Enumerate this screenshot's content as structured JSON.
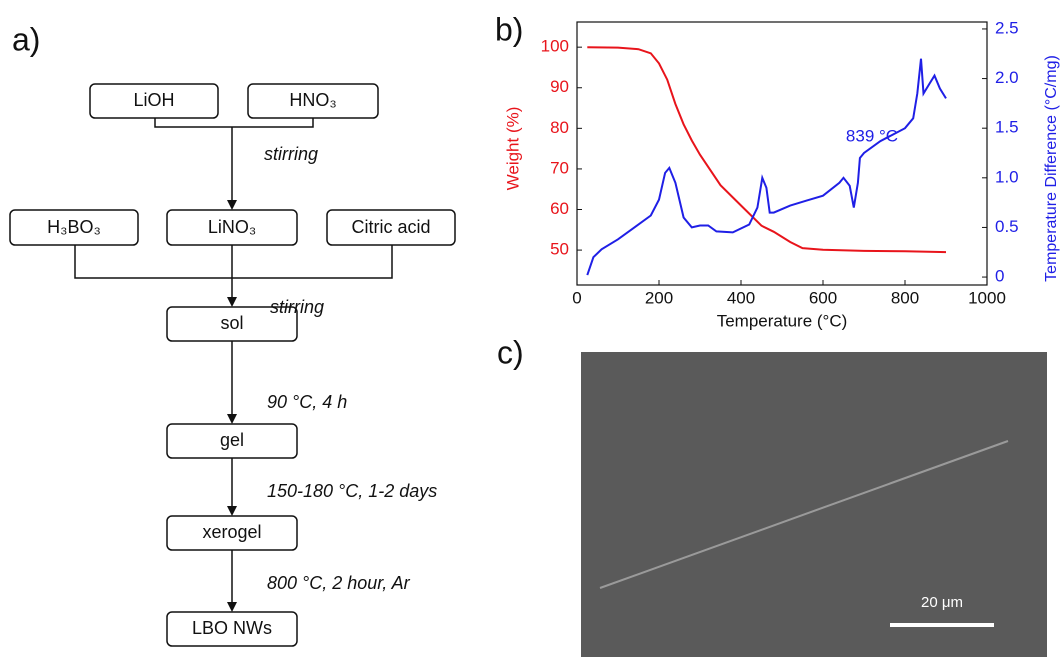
{
  "panel_labels": [
    "a)",
    "b)",
    "c)"
  ],
  "flowchart": {
    "nodes": [
      "LiOH",
      "HNO₃",
      "H₃BO₃",
      "LiNO₃",
      "Citric acid",
      "sol",
      "gel",
      "xerogel",
      "LBO NWs"
    ],
    "steps": [
      "stirring",
      "stirring",
      "90 °C, 4 h",
      "150-180 °C, 1-2 days",
      "800 °C, 2 hour, Ar"
    ]
  },
  "chart_data": {
    "type": "line",
    "xlabel": "Temperature (°C)",
    "ylabel": "Weight (%)",
    "y2label": "Temperature Difference (°C/mg)",
    "annotation": "839 °C",
    "xlim": [
      0,
      1000
    ],
    "xticks": [
      0,
      200,
      400,
      600,
      800,
      1000
    ],
    "ylim": [
      41.4,
      106.2
    ],
    "yticks": [
      50,
      60,
      70,
      80,
      90,
      100
    ],
    "y2lim": [
      -0.08,
      2.57
    ],
    "y2ticks": [
      0,
      0.5,
      {
        "value": 1,
        "label": "1.0"
      },
      1.5,
      {
        "value": 2,
        "label": "2.0"
      },
      2.5
    ],
    "series": [
      {
        "color": "#e8141b",
        "x": [
          25,
          100,
          150,
          180,
          200,
          220,
          240,
          260,
          280,
          300,
          350,
          400,
          450,
          480,
          520,
          550,
          600,
          700,
          800,
          900
        ],
        "values": [
          100,
          99.9,
          99.5,
          98.5,
          96,
          92,
          86,
          81,
          77,
          73.5,
          66,
          61,
          56,
          54.5,
          52,
          50.5,
          50.1,
          49.8,
          49.7,
          49.5
        ]
      },
      {
        "color": "#1f1fe6",
        "axis": "y2",
        "x": [
          25,
          40,
          60,
          100,
          140,
          180,
          200,
          215,
          225,
          240,
          260,
          280,
          300,
          320,
          340,
          380,
          420,
          440,
          452,
          462,
          470,
          480,
          520,
          560,
          600,
          640,
          650,
          665,
          675,
          685,
          690,
          700,
          740,
          800,
          820,
          830,
          839,
          845,
          860,
          872,
          885,
          900
        ],
        "values": [
          0.02,
          0.2,
          0.28,
          0.38,
          0.5,
          0.62,
          0.78,
          1.05,
          1.1,
          0.95,
          0.6,
          0.5,
          0.52,
          0.52,
          0.46,
          0.45,
          0.53,
          0.7,
          1.0,
          0.9,
          0.65,
          0.65,
          0.72,
          0.77,
          0.82,
          0.95,
          1.0,
          0.92,
          0.7,
          0.95,
          1.2,
          1.25,
          1.37,
          1.5,
          1.6,
          1.85,
          2.2,
          1.85,
          1.95,
          2.03,
          1.9,
          1.8
        ]
      }
    ]
  },
  "image": {
    "scale_bar": "20 μm"
  }
}
